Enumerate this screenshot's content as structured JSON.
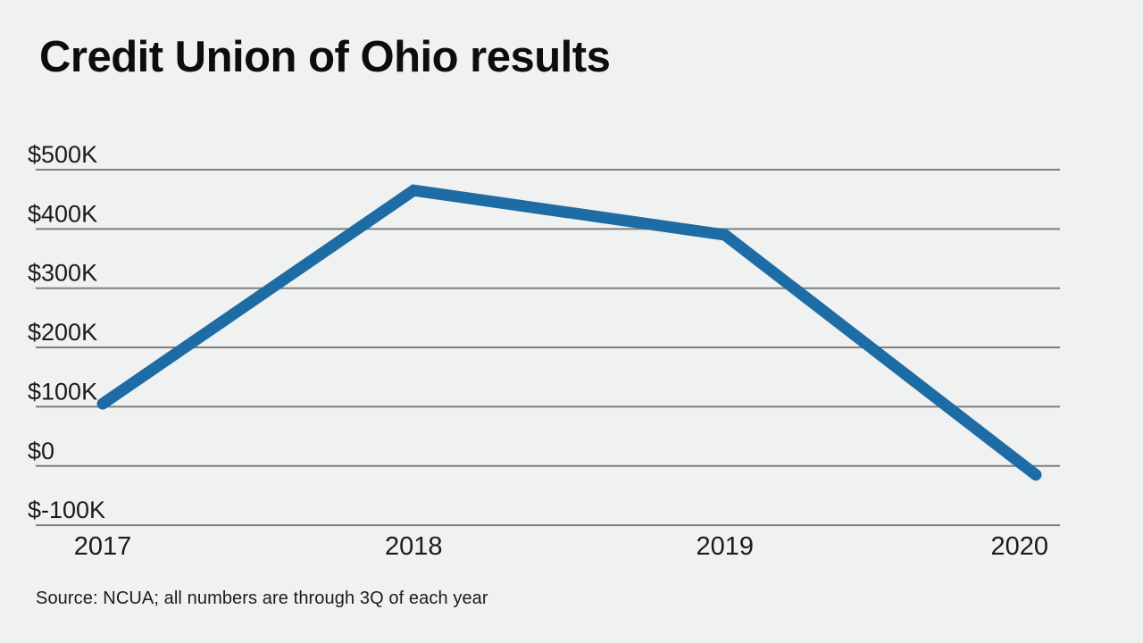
{
  "page": {
    "background_color": "#f0f1f1"
  },
  "chart_data": {
    "type": "line",
    "title": "Credit Union of Ohio results",
    "source": "Source: NCUA; all numbers are through 3Q of each year",
    "categories": [
      "2017",
      "2018",
      "2019",
      "2020"
    ],
    "series": [
      {
        "name": "Credit Union of Ohio results",
        "values": [
          105000,
          465000,
          390000,
          -15000
        ]
      }
    ],
    "y_ticks": [
      {
        "value": 500000,
        "label": "$500K"
      },
      {
        "value": 400000,
        "label": "$400K"
      },
      {
        "value": 300000,
        "label": "$300K"
      },
      {
        "value": 200000,
        "label": "$200K"
      },
      {
        "value": 100000,
        "label": "$100K"
      },
      {
        "value": 0,
        "label": "$0"
      },
      {
        "value": -100000,
        "label": "$-100K"
      }
    ],
    "ylim": [
      -100000,
      500000
    ],
    "xlabel": "",
    "ylabel": "",
    "grid": "horizontal",
    "legend": "none",
    "colors": {
      "line": "#1e6ca5",
      "gridline": "#7d8080",
      "text": "#1b1b1b"
    }
  }
}
